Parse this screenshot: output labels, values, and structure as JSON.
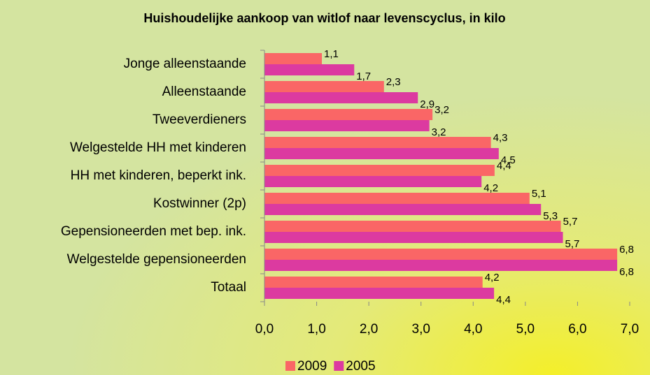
{
  "chart_data": {
    "type": "barh",
    "title": "Huishoudelijke aankoop van witlof naar levenscyclus, in kilo",
    "categories": [
      "Jonge alleenstaande",
      "Alleenstaande",
      "Tweeverdieners",
      "Welgestelde HH met kinderen",
      "HH met kinderen, beperkt ink.",
      "Kostwinner (2p)",
      "Gepensioneerden met bep. ink.",
      "Welgestelde gepensioneerden",
      "Totaal"
    ],
    "series": [
      {
        "name": "2009",
        "color": "#fa6666",
        "values": [
          1.1,
          2.29,
          3.22,
          4.34,
          4.41,
          5.08,
          5.68,
          6.76,
          4.18
        ],
        "value_labels": [
          "1,1",
          "2,3",
          "3,2",
          "4,3",
          "4,4",
          "5,1",
          "5,7",
          "6,8",
          "4,2"
        ]
      },
      {
        "name": "2005",
        "color": "#dc3aa0",
        "values": [
          1.72,
          2.94,
          3.16,
          4.49,
          4.16,
          5.3,
          5.72,
          6.76,
          4.4
        ],
        "value_labels": [
          "1,7",
          "2,9",
          "3,2",
          "4,5",
          "4,2",
          "5,3",
          "5,7",
          "6,8",
          "4,4"
        ]
      }
    ],
    "xlim": [
      0,
      7
    ],
    "xticks": [
      {
        "value": 0,
        "label": "0,0"
      },
      {
        "value": 1,
        "label": "1,0"
      },
      {
        "value": 2,
        "label": "2,0"
      },
      {
        "value": 3,
        "label": "3,0"
      },
      {
        "value": 4,
        "label": "4,0"
      },
      {
        "value": 5,
        "label": "5,0"
      },
      {
        "value": 6,
        "label": "6,0"
      },
      {
        "value": 7,
        "label": "7,0"
      }
    ],
    "legend": "bottom"
  }
}
